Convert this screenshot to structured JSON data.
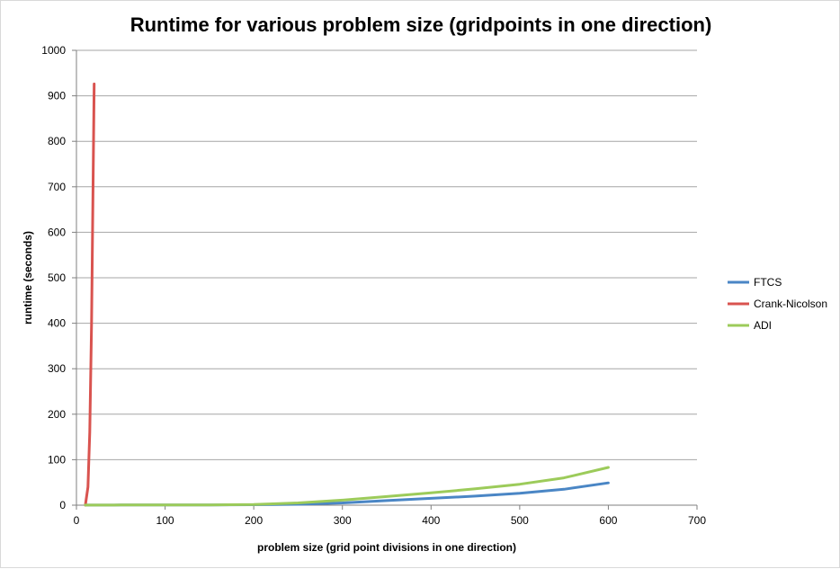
{
  "chart_data": {
    "type": "line",
    "title": "Runtime for various problem size (gridpoints in one direction)",
    "xlabel": "problem size (grid point divisions in one direction)",
    "ylabel": "runtime (seconds)",
    "xlim": [
      0,
      700
    ],
    "ylim": [
      0,
      1000
    ],
    "xticks": [
      "0",
      "100",
      "200",
      "300",
      "400",
      "500",
      "600",
      "700"
    ],
    "yticks": [
      "0",
      "100",
      "200",
      "300",
      "400",
      "500",
      "600",
      "700",
      "800",
      "900",
      "1000"
    ],
    "grid": true,
    "legend_position": "right",
    "series": [
      {
        "name": "FTCS",
        "color": "#4a86c5",
        "points": [
          [
            10,
            0.2
          ],
          [
            50,
            0.3
          ],
          [
            100,
            0.4
          ],
          [
            150,
            0.5
          ],
          [
            200,
            1
          ],
          [
            250,
            2
          ],
          [
            300,
            5
          ],
          [
            350,
            10
          ],
          [
            400,
            15
          ],
          [
            450,
            20
          ],
          [
            500,
            26
          ],
          [
            550,
            35
          ],
          [
            600,
            49
          ]
        ]
      },
      {
        "name": "Crank-Nicolson",
        "color": "#d9534f",
        "points": [
          [
            10,
            0
          ],
          [
            13,
            40
          ],
          [
            15,
            160
          ],
          [
            17,
            400
          ],
          [
            20,
            926
          ]
        ]
      },
      {
        "name": "ADI",
        "color": "#9ccb5a",
        "points": [
          [
            10,
            0.2
          ],
          [
            50,
            0.3
          ],
          [
            100,
            0.4
          ],
          [
            150,
            0.6
          ],
          [
            200,
            1.5
          ],
          [
            250,
            5
          ],
          [
            300,
            11
          ],
          [
            350,
            19
          ],
          [
            400,
            27
          ],
          [
            450,
            36
          ],
          [
            500,
            46
          ],
          [
            550,
            60
          ],
          [
            600,
            83
          ]
        ]
      }
    ]
  }
}
